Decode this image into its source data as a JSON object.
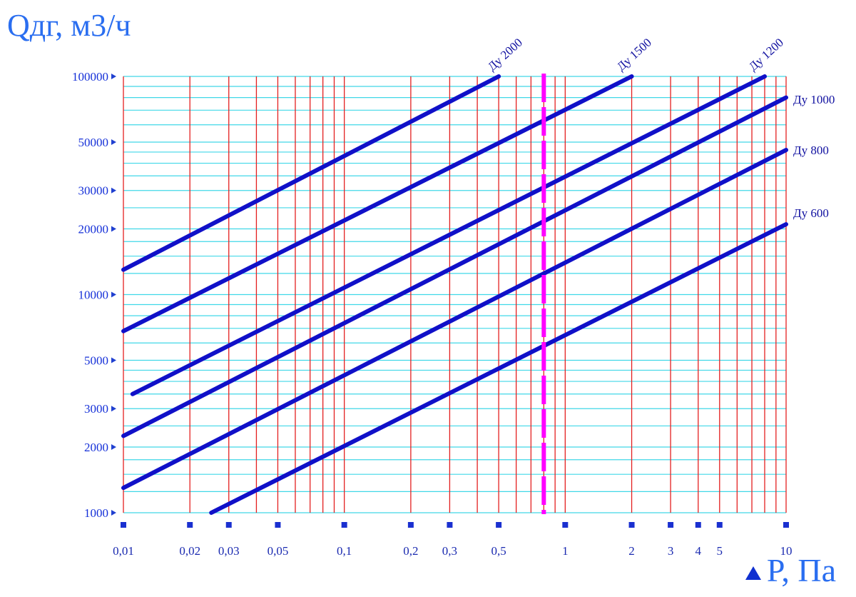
{
  "chart_data": {
    "type": "line",
    "xlabel": "P, Па",
    "ylabel": "Qдг, м3/ч",
    "x_scale": "log",
    "y_scale": "log",
    "xlim": [
      0.01,
      10
    ],
    "ylim": [
      1000,
      100000
    ],
    "grid": true,
    "x_ticks": [
      {
        "value": 0.01,
        "label": "0,01"
      },
      {
        "value": 0.02,
        "label": "0,02"
      },
      {
        "value": 0.03,
        "label": "0,03"
      },
      {
        "value": 0.05,
        "label": "0,05"
      },
      {
        "value": 0.1,
        "label": "0,1"
      },
      {
        "value": 0.2,
        "label": "0,2"
      },
      {
        "value": 0.3,
        "label": "0,3"
      },
      {
        "value": 0.5,
        "label": "0,5"
      },
      {
        "value": 1,
        "label": "1"
      },
      {
        "value": 2,
        "label": "2"
      },
      {
        "value": 3,
        "label": "3"
      },
      {
        "value": 4,
        "label": "4"
      },
      {
        "value": 5,
        "label": "5"
      },
      {
        "value": 10,
        "label": "10"
      }
    ],
    "y_ticks": [
      {
        "value": 1000,
        "label": "1000"
      },
      {
        "value": 2000,
        "label": "2000"
      },
      {
        "value": 3000,
        "label": "3000"
      },
      {
        "value": 5000,
        "label": "5000"
      },
      {
        "value": 10000,
        "label": "10000"
      },
      {
        "value": 20000,
        "label": "20000"
      },
      {
        "value": 30000,
        "label": "30000"
      },
      {
        "value": 50000,
        "label": "50000"
      },
      {
        "value": 100000,
        "label": "100000"
      }
    ],
    "series": [
      {
        "name": "Ду 2000",
        "color": "#1010c8",
        "x": [
          0.01,
          0.5
        ],
        "y": [
          13000,
          100000
        ]
      },
      {
        "name": "Ду 1500",
        "color": "#1010c8",
        "x": [
          0.01,
          2
        ],
        "y": [
          6800,
          100000
        ]
      },
      {
        "name": "Ду 1200",
        "color": "#1010c8",
        "x": [
          0.011,
          8
        ],
        "y": [
          3500,
          100000
        ]
      },
      {
        "name": "Ду 1000",
        "color": "#1010c8",
        "x": [
          0.01,
          10
        ],
        "y": [
          2250,
          80000
        ]
      },
      {
        "name": "Ду 800",
        "color": "#1010c8",
        "x": [
          0.01,
          10
        ],
        "y": [
          1300,
          46000
        ]
      },
      {
        "name": "Ду 600",
        "color": "#1010c8",
        "x": [
          0.025,
          10
        ],
        "y": [
          1000,
          21000
        ]
      }
    ],
    "marker_line": {
      "x": 0.8,
      "color": "#ff00ff",
      "style": "dashed"
    },
    "colors": {
      "vertical_grid": "#e42020",
      "horizontal_grid": "#40d8e8",
      "tick_text": "#1530d8",
      "axis_title": "#2a6ef0"
    }
  }
}
